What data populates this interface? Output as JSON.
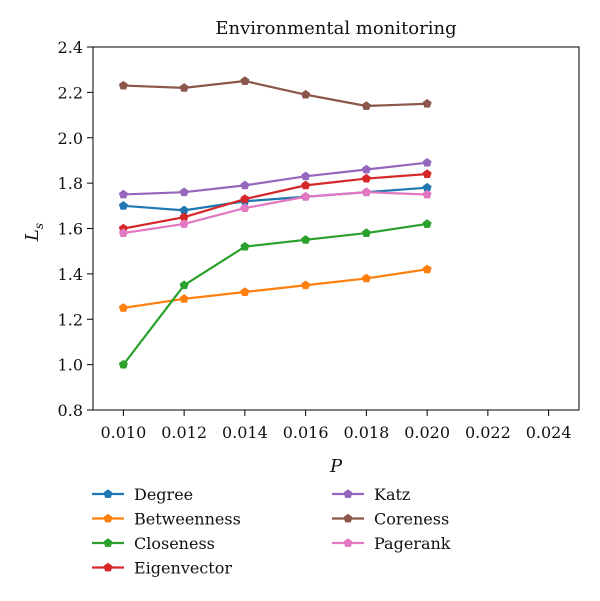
{
  "chart_data": {
    "type": "line",
    "title": "Environmental monitoring",
    "xlabel": "P",
    "ylabel": "L",
    "ylabel_sub": "s",
    "xlim": [
      0.009,
      0.025
    ],
    "ylim": [
      0.8,
      2.4
    ],
    "x_ticks": [
      "0.010",
      "0.012",
      "0.014",
      "0.016",
      "0.018",
      "0.020",
      "0.022",
      "0.024"
    ],
    "y_ticks": [
      "0.8",
      "1.0",
      "1.2",
      "1.4",
      "1.6",
      "1.8",
      "2.0",
      "2.2",
      "2.4"
    ],
    "x": [
      0.01,
      0.012,
      0.014,
      0.016,
      0.018,
      0.02
    ],
    "grid": false,
    "legend_position": "below",
    "series": [
      {
        "name": "Degree",
        "color": "#1f77b4",
        "values": [
          1.7,
          1.68,
          1.72,
          1.74,
          1.76,
          1.78
        ]
      },
      {
        "name": "Betweenness",
        "color": "#ff7f0e",
        "values": [
          1.25,
          1.29,
          1.32,
          1.35,
          1.38,
          1.42
        ]
      },
      {
        "name": "Closeness",
        "color": "#2ca02c",
        "values": [
          1.0,
          1.35,
          1.52,
          1.55,
          1.58,
          1.62
        ]
      },
      {
        "name": "Eigenvector",
        "color": "#d62728",
        "values": [
          1.6,
          1.65,
          1.73,
          1.79,
          1.82,
          1.84
        ]
      },
      {
        "name": "Katz",
        "color": "#9467bd",
        "values": [
          1.75,
          1.76,
          1.79,
          1.83,
          1.86,
          1.89
        ]
      },
      {
        "name": "Coreness",
        "color": "#8c564b",
        "values": [
          2.23,
          2.22,
          2.25,
          2.19,
          2.14,
          2.15
        ]
      },
      {
        "name": "Pagerank",
        "color": "#e377c2",
        "values": [
          1.58,
          1.62,
          1.69,
          1.74,
          1.76,
          1.75
        ]
      }
    ]
  }
}
